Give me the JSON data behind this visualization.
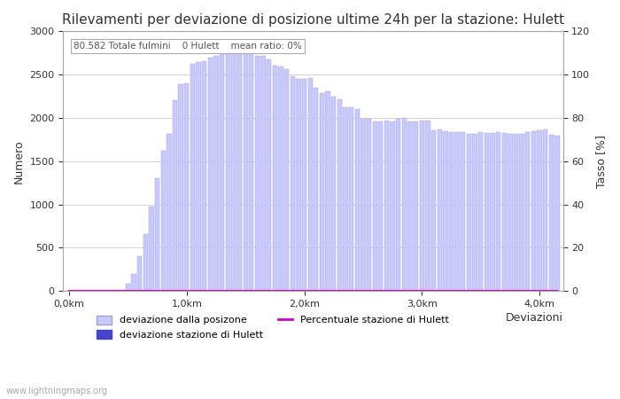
{
  "title": "Rilevamenti per deviazione di posizione ultime 24h per la stazione: Hulett",
  "xlabel": "Deviazioni",
  "ylabel_left": "Numero",
  "ylabel_right": "Tasso [%]",
  "annotation": "80.582 Totale fulmini    0 Hulett    mean ratio: 0%",
  "watermark": "www.lightningmaps.org",
  "bar_values": [
    0,
    0,
    0,
    0,
    0,
    0,
    0,
    0,
    0,
    0,
    85,
    200,
    400,
    660,
    980,
    1300,
    1620,
    1820,
    2200,
    2390,
    2400,
    2620,
    2650,
    2660,
    2700,
    2720,
    2750,
    2820,
    2860,
    2800,
    2800,
    2790,
    2720,
    2720,
    2680,
    2600,
    2590,
    2560,
    2480,
    2450,
    2450,
    2460,
    2350,
    2290,
    2310,
    2250,
    2210,
    2120,
    2120,
    2100,
    1990,
    1990,
    1960,
    1960,
    1970,
    1960,
    1990,
    2000,
    1960,
    1960,
    1970,
    1970,
    1860,
    1870,
    1850,
    1840,
    1840,
    1840,
    1820,
    1820,
    1840,
    1830,
    1830,
    1840,
    1830,
    1820,
    1820,
    1820,
    1840,
    1850,
    1860,
    1870,
    1810,
    1800
  ],
  "hulett_values": [
    0,
    0,
    0,
    0,
    0,
    0,
    0,
    0,
    0,
    0,
    0,
    0,
    0,
    0,
    0,
    0,
    0,
    0,
    0,
    0,
    0,
    0,
    0,
    0,
    0,
    0,
    0,
    0,
    0,
    0,
    0,
    0,
    0,
    0,
    0,
    0,
    0,
    0,
    0,
    0,
    0,
    0,
    0,
    0,
    0,
    0,
    0,
    0,
    0,
    0,
    0,
    0,
    0,
    0,
    0,
    0,
    0,
    0,
    0,
    0,
    0,
    0,
    0,
    0,
    0,
    0,
    0,
    0,
    0,
    0,
    0,
    0,
    0,
    0,
    0,
    0,
    0,
    0,
    0,
    0,
    0,
    0,
    0,
    0
  ],
  "ratio_values": [
    0,
    0,
    0,
    0,
    0,
    0,
    0,
    0,
    0,
    0,
    0,
    0,
    0,
    0,
    0,
    0,
    0,
    0,
    0,
    0,
    0,
    0,
    0,
    0,
    0,
    0,
    0,
    0,
    0,
    0,
    0,
    0,
    0,
    0,
    0,
    0,
    0,
    0,
    0,
    0,
    0,
    0,
    0,
    0,
    0,
    0,
    0,
    0,
    0,
    0,
    0,
    0,
    0,
    0,
    0,
    0,
    0,
    0,
    0,
    0,
    0,
    0,
    0,
    0,
    0,
    0,
    0,
    0,
    0,
    0,
    0,
    0,
    0,
    0,
    0,
    0,
    0,
    0,
    0,
    0,
    0,
    0,
    0,
    0
  ],
  "bar_color": "#c8caff",
  "bar_edge_color": "#a0a0d0",
  "hulett_color": "#4444cc",
  "ratio_color": "#cc00cc",
  "ylim_left": [
    0,
    3000
  ],
  "ylim_right": [
    0,
    120
  ],
  "xtick_positions": [
    0,
    20,
    40,
    60,
    80
  ],
  "xtick_labels": [
    "0,0km",
    "1,0km",
    "2,0km",
    "3,0km",
    "4,0km"
  ],
  "ytick_left": [
    0,
    500,
    1000,
    1500,
    2000,
    2500,
    3000
  ],
  "ytick_right": [
    0,
    20,
    40,
    60,
    80,
    100,
    120
  ],
  "grid_color": "#aaaaaa",
  "background_color": "#ffffff",
  "title_fontsize": 11,
  "label_fontsize": 9,
  "tick_fontsize": 8
}
